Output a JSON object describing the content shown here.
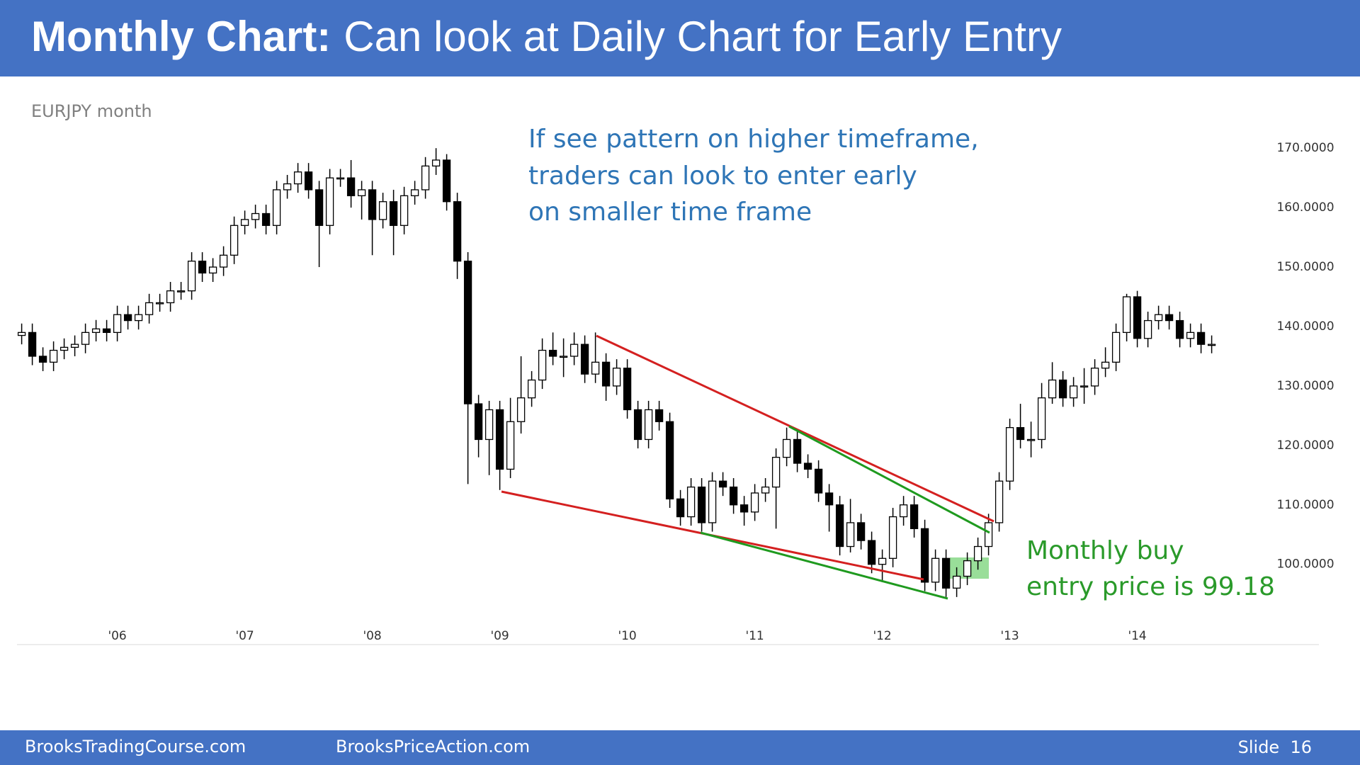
{
  "header": {
    "title_bold": "Monthly Chart:",
    "title_rest": "Can look at Daily Chart for Early Entry"
  },
  "chart_data": {
    "type": "candlestick",
    "subtitle": "EURJPY month",
    "annotations": {
      "blue": [
        "If see pattern on higher timeframe,",
        "traders can look to enter early",
        "on smaller time frame"
      ],
      "green": [
        "Monthly buy",
        "entry price is 99.18"
      ]
    },
    "categories": [
      null,
      null,
      null,
      null,
      null,
      null,
      null,
      null,
      null,
      "'06",
      null,
      null,
      null,
      null,
      null,
      null,
      null,
      null,
      null,
      null,
      null,
      "'07",
      null,
      null,
      null,
      null,
      null,
      null,
      null,
      null,
      null,
      null,
      null,
      "'08",
      null,
      null,
      null,
      null,
      null,
      null,
      null,
      null,
      null,
      null,
      null,
      "'09",
      null,
      null,
      null,
      null,
      null,
      null,
      null,
      null,
      null,
      null,
      null,
      "'10",
      null,
      null,
      null,
      null,
      null,
      null,
      null,
      null,
      null,
      null,
      null,
      "'11",
      null,
      null,
      null,
      null,
      null,
      null,
      null,
      null,
      null,
      null,
      null,
      "'12",
      null,
      null,
      null,
      null,
      null,
      null,
      null,
      null,
      null,
      null,
      null,
      "'13",
      null,
      null,
      null,
      null,
      null,
      null,
      null,
      null,
      null,
      null,
      null,
      "'14",
      null,
      null,
      null,
      null,
      null,
      null,
      null
    ],
    "open": [
      138.5,
      139,
      135,
      134,
      136,
      136.5,
      137,
      139,
      139.6,
      139,
      142,
      141,
      142,
      144,
      144,
      146,
      146,
      151,
      149,
      150,
      152,
      157,
      158,
      159,
      157,
      163,
      164,
      166,
      163,
      157,
      165,
      165,
      162,
      163,
      158,
      161,
      157,
      162,
      163,
      167,
      168,
      161,
      151,
      127,
      121,
      126,
      116,
      124,
      128,
      131,
      136,
      135,
      135,
      137,
      132,
      134,
      130,
      133,
      126,
      121,
      126,
      124,
      111,
      108,
      113,
      107,
      114,
      113,
      110,
      108.8,
      112,
      113,
      118,
      121,
      117,
      116,
      112,
      110,
      103,
      107,
      104,
      100,
      101,
      108,
      110,
      106,
      97,
      101,
      96,
      98,
      100.6,
      103,
      107,
      114,
      123,
      121,
      121,
      128,
      131,
      128,
      130,
      130,
      133,
      134,
      139,
      145,
      138,
      141,
      142,
      141,
      138,
      139,
      137
    ],
    "high": [
      140.5,
      140.5,
      136.5,
      137.5,
      138,
      138.5,
      140.5,
      141.1,
      141.1,
      143.5,
      143.5,
      143.5,
      145.5,
      145.5,
      147.5,
      147.5,
      152.5,
      152.5,
      151.5,
      153.5,
      158.5,
      159.5,
      160.5,
      160.5,
      164.5,
      165.5,
      167.5,
      167.5,
      164.5,
      166.5,
      166.5,
      168,
      164.5,
      164.5,
      162.5,
      163,
      163.5,
      164.5,
      168.5,
      170,
      169,
      162.5,
      152.5,
      128.5,
      127.5,
      127.5,
      128,
      135,
      132.5,
      138,
      139,
      138,
      139,
      138.5,
      139,
      135.5,
      134.5,
      134.5,
      127.5,
      127.5,
      127.5,
      125.5,
      112.5,
      114.5,
      114.5,
      115.5,
      115.5,
      114.5,
      111.5,
      113.5,
      114.5,
      119.5,
      123,
      122.5,
      118.5,
      117.5,
      113.5,
      111.5,
      111,
      108.5,
      105.5,
      102.5,
      109.5,
      111.5,
      111.5,
      107.5,
      102.5,
      102.5,
      99.5,
      102,
      104.5,
      108.5,
      115.5,
      124.5,
      127,
      124,
      130.5,
      134,
      132.5,
      131.5,
      133,
      134.5,
      136.5,
      140.5,
      145.5,
      146,
      142.5,
      143.5,
      143.5,
      142.5,
      140.5,
      140.5,
      138.5
    ],
    "low": [
      137,
      133.5,
      132.5,
      132.5,
      134.5,
      135,
      135.5,
      137.5,
      137.5,
      137.5,
      139.5,
      139.5,
      140.5,
      142.5,
      142.5,
      144.5,
      144.5,
      147.5,
      147.5,
      148.5,
      150.5,
      155.5,
      156.5,
      155.5,
      155.5,
      161.5,
      162.5,
      161.5,
      150,
      155.5,
      163.5,
      160,
      158,
      152,
      156.5,
      152,
      155.5,
      160.5,
      161.5,
      165.5,
      159.5,
      148,
      113.5,
      118,
      115,
      112.5,
      114.5,
      122,
      126.5,
      129.5,
      133.5,
      131.5,
      133.5,
      130.5,
      130.5,
      127.5,
      128.5,
      124.5,
      119.5,
      119.5,
      122.5,
      109.5,
      106.5,
      106.5,
      105.5,
      105.5,
      111.5,
      108.5,
      106.5,
      107.3,
      110.5,
      106,
      116.5,
      115.5,
      114.5,
      110.5,
      105.5,
      101.5,
      102,
      102.5,
      98.5,
      97,
      99.5,
      106.5,
      104.5,
      95.5,
      95.5,
      94.5,
      94.5,
      96.5,
      99.1,
      101.5,
      105.5,
      112.5,
      119.5,
      118,
      119.5,
      127,
      126.5,
      126.5,
      127,
      128.5,
      131.5,
      132.5,
      137.5,
      136.5,
      136.5,
      139.5,
      139.5,
      136.5,
      136.5,
      135.5,
      135.5
    ],
    "close": [
      139,
      135,
      134,
      136,
      136.5,
      137,
      139,
      139.6,
      139,
      142,
      141,
      142,
      144,
      144,
      146,
      146,
      151,
      149,
      150,
      152,
      157,
      158,
      159,
      157,
      163,
      164,
      166,
      163,
      157,
      165,
      165,
      162,
      163,
      158,
      161,
      157,
      162,
      163,
      167,
      168,
      161,
      151,
      127,
      121,
      126,
      116,
      124,
      128,
      131,
      136,
      135,
      135,
      137,
      132,
      134,
      130,
      133,
      126,
      121,
      126,
      124,
      111,
      108,
      113,
      107,
      114,
      113,
      110,
      108.8,
      112,
      113,
      118,
      121,
      117,
      116,
      112,
      110,
      103,
      107,
      104,
      100,
      101,
      108,
      110,
      106,
      97,
      101,
      96,
      98,
      100.6,
      103,
      107,
      114,
      123,
      121,
      121,
      128,
      131,
      128,
      130,
      130,
      133,
      134,
      139,
      145,
      138,
      141,
      142,
      141,
      138,
      139,
      137,
      137
    ],
    "up_color": "#ffffff",
    "down_color": "#000000",
    "ylim": [
      86.5,
      173
    ],
    "yticks": [
      {
        "value": 100,
        "label": "100.0000"
      },
      {
        "value": 110,
        "label": "110.0000"
      },
      {
        "value": 120,
        "label": "120.0000"
      },
      {
        "value": 130,
        "label": "130.0000"
      },
      {
        "value": 140,
        "label": "140.0000"
      },
      {
        "value": 150,
        "label": "150.0000"
      },
      {
        "value": 160,
        "label": "160.0000"
      },
      {
        "value": 170,
        "label": "170.0000"
      }
    ],
    "grid": false
  },
  "footer": {
    "left": "BrooksTradingCourse.com",
    "middle": "BrooksPriceAction.com",
    "slide": "Slide  16"
  }
}
